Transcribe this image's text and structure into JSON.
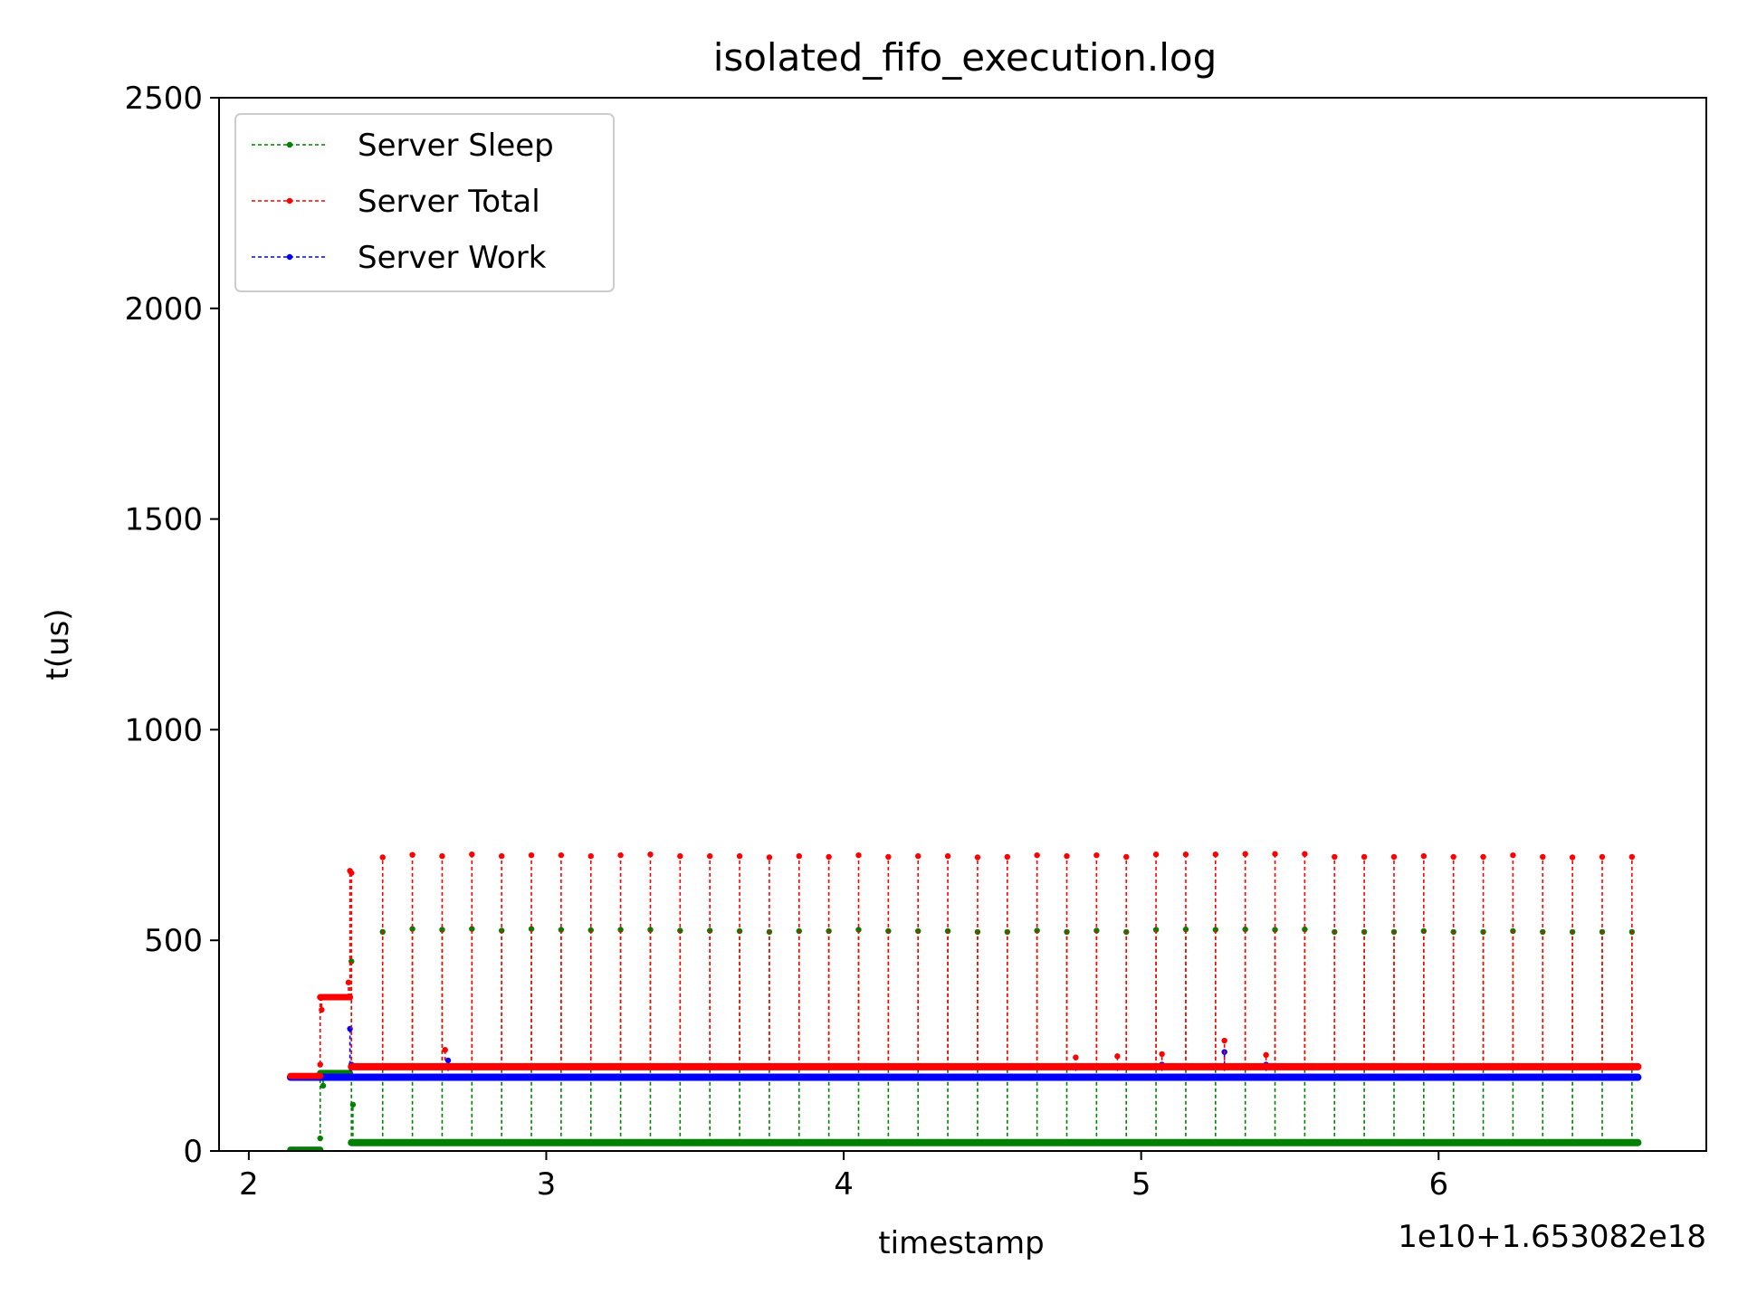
{
  "chart_data": {
    "type": "line",
    "title": "isolated_fifo_execution.log",
    "xlabel": "timestamp",
    "ylabel": "t(us)",
    "x_offset_label": "1e10+1.653082e18",
    "xlim": [
      1.9,
      6.9
    ],
    "ylim": [
      0,
      2500
    ],
    "xticks": [
      2,
      3,
      4,
      5,
      6
    ],
    "xtick_labels": [
      "2",
      "3",
      "4",
      "5",
      "6"
    ],
    "yticks": [
      0,
      500,
      1000,
      1500,
      2000,
      2500
    ],
    "ytick_labels": [
      "0",
      "500",
      "1000",
      "1500",
      "2000",
      "2500"
    ],
    "grid": false,
    "legend_position": "upper-left",
    "x_range": [
      2.14,
      6.67
    ],
    "line_style": "dashed",
    "series": [
      {
        "name": "Server Sleep",
        "color": "#008000",
        "baseline": 20,
        "early_segments": [
          {
            "x0": 2.14,
            "x1": 2.24,
            "y": 3
          },
          {
            "x0": 2.24,
            "x1": 2.34,
            "y": 185
          }
        ],
        "spikes": [
          {
            "x": 2.24,
            "y": 30
          },
          {
            "x": 2.25,
            "y": 155
          },
          {
            "x": 2.345,
            "y": 450
          },
          {
            "x": 2.35,
            "y": 110
          },
          {
            "x": 2.45,
            "y": 520
          },
          {
            "x": 2.55,
            "y": 527
          },
          {
            "x": 2.65,
            "y": 525
          },
          {
            "x": 2.75,
            "y": 527
          },
          {
            "x": 2.85,
            "y": 523
          },
          {
            "x": 2.95,
            "y": 527
          },
          {
            "x": 3.05,
            "y": 525
          },
          {
            "x": 3.15,
            "y": 524
          },
          {
            "x": 3.25,
            "y": 525
          },
          {
            "x": 3.35,
            "y": 525
          },
          {
            "x": 3.45,
            "y": 523
          },
          {
            "x": 3.55,
            "y": 523
          },
          {
            "x": 3.65,
            "y": 522
          },
          {
            "x": 3.75,
            "y": 520
          },
          {
            "x": 3.85,
            "y": 522
          },
          {
            "x": 3.95,
            "y": 522
          },
          {
            "x": 4.05,
            "y": 525
          },
          {
            "x": 4.15,
            "y": 522
          },
          {
            "x": 4.25,
            "y": 522
          },
          {
            "x": 4.35,
            "y": 522
          },
          {
            "x": 4.45,
            "y": 520
          },
          {
            "x": 4.55,
            "y": 520
          },
          {
            "x": 4.65,
            "y": 523
          },
          {
            "x": 4.75,
            "y": 520
          },
          {
            "x": 4.85,
            "y": 523
          },
          {
            "x": 4.95,
            "y": 520
          },
          {
            "x": 5.05,
            "y": 525
          },
          {
            "x": 5.15,
            "y": 526
          },
          {
            "x": 5.25,
            "y": 525
          },
          {
            "x": 5.35,
            "y": 526
          },
          {
            "x": 5.45,
            "y": 525
          },
          {
            "x": 5.55,
            "y": 526
          },
          {
            "x": 5.65,
            "y": 520
          },
          {
            "x": 5.75,
            "y": 520
          },
          {
            "x": 5.85,
            "y": 520
          },
          {
            "x": 5.95,
            "y": 522
          },
          {
            "x": 6.05,
            "y": 520
          },
          {
            "x": 6.15,
            "y": 520
          },
          {
            "x": 6.25,
            "y": 522
          },
          {
            "x": 6.35,
            "y": 520
          },
          {
            "x": 6.45,
            "y": 520
          },
          {
            "x": 6.55,
            "y": 520
          },
          {
            "x": 6.65,
            "y": 520
          }
        ]
      },
      {
        "name": "Server Total",
        "color": "#ff0000",
        "baseline": 200,
        "early_segments": [
          {
            "x0": 2.14,
            "x1": 2.24,
            "y": 178
          },
          {
            "x0": 2.24,
            "x1": 2.34,
            "y": 365
          }
        ],
        "spikes": [
          {
            "x": 2.24,
            "y": 205
          },
          {
            "x": 2.245,
            "y": 335
          },
          {
            "x": 2.335,
            "y": 400
          },
          {
            "x": 2.34,
            "y": 665
          },
          {
            "x": 2.345,
            "y": 660
          },
          {
            "x": 2.45,
            "y": 697
          },
          {
            "x": 2.55,
            "y": 703
          },
          {
            "x": 2.65,
            "y": 700
          },
          {
            "x": 2.75,
            "y": 704
          },
          {
            "x": 2.85,
            "y": 700
          },
          {
            "x": 2.95,
            "y": 702
          },
          {
            "x": 3.05,
            "y": 702
          },
          {
            "x": 3.15,
            "y": 700
          },
          {
            "x": 3.25,
            "y": 702
          },
          {
            "x": 3.35,
            "y": 704
          },
          {
            "x": 3.45,
            "y": 700
          },
          {
            "x": 3.55,
            "y": 700
          },
          {
            "x": 3.65,
            "y": 700
          },
          {
            "x": 3.75,
            "y": 697
          },
          {
            "x": 3.85,
            "y": 700
          },
          {
            "x": 3.95,
            "y": 698
          },
          {
            "x": 4.05,
            "y": 702
          },
          {
            "x": 4.15,
            "y": 698
          },
          {
            "x": 4.25,
            "y": 700
          },
          {
            "x": 4.35,
            "y": 700
          },
          {
            "x": 4.45,
            "y": 697
          },
          {
            "x": 4.55,
            "y": 698
          },
          {
            "x": 4.65,
            "y": 702
          },
          {
            "x": 4.75,
            "y": 700
          },
          {
            "x": 4.85,
            "y": 702
          },
          {
            "x": 4.95,
            "y": 698
          },
          {
            "x": 5.05,
            "y": 704
          },
          {
            "x": 5.15,
            "y": 704
          },
          {
            "x": 5.25,
            "y": 704
          },
          {
            "x": 5.35,
            "y": 705
          },
          {
            "x": 5.45,
            "y": 705
          },
          {
            "x": 5.55,
            "y": 705
          },
          {
            "x": 5.65,
            "y": 698
          },
          {
            "x": 5.75,
            "y": 698
          },
          {
            "x": 5.85,
            "y": 698
          },
          {
            "x": 5.95,
            "y": 700
          },
          {
            "x": 6.05,
            "y": 698
          },
          {
            "x": 6.15,
            "y": 698
          },
          {
            "x": 6.25,
            "y": 702
          },
          {
            "x": 6.35,
            "y": 698
          },
          {
            "x": 6.45,
            "y": 697
          },
          {
            "x": 6.55,
            "y": 698
          },
          {
            "x": 6.65,
            "y": 698
          },
          {
            "x": 2.66,
            "y": 240
          },
          {
            "x": 4.78,
            "y": 222
          },
          {
            "x": 4.92,
            "y": 225
          },
          {
            "x": 5.07,
            "y": 230
          },
          {
            "x": 5.28,
            "y": 262
          },
          {
            "x": 5.42,
            "y": 228
          }
        ]
      },
      {
        "name": "Server Work",
        "color": "#0000ff",
        "baseline": 175,
        "early_segments": [],
        "spikes": [
          {
            "x": 2.34,
            "y": 290
          },
          {
            "x": 2.345,
            "y": 205
          },
          {
            "x": 2.67,
            "y": 215
          },
          {
            "x": 4.78,
            "y": 202
          },
          {
            "x": 4.92,
            "y": 200
          },
          {
            "x": 5.07,
            "y": 205
          },
          {
            "x": 5.28,
            "y": 235
          },
          {
            "x": 5.42,
            "y": 205
          }
        ]
      }
    ]
  }
}
